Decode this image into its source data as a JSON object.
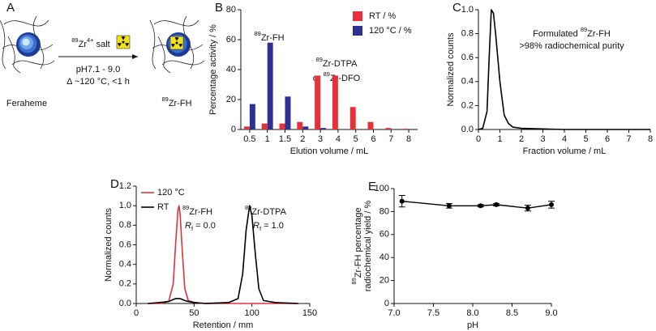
{
  "schematic": {
    "panel": "A",
    "start_label": "Feraheme",
    "reagent": {
      "sup": "89",
      "text": "Zr",
      "sup2": "4+",
      "rest": " salt"
    },
    "condition_ph": "pH7.1 - 9.0",
    "condition_temp": "Δ ~120 °C, <1 h",
    "product_label": {
      "sup": "89",
      "text": "Zr-FH"
    }
  },
  "chart_data": [
    {
      "type": "bar",
      "panel": "B",
      "categories": [
        "0.5",
        "1",
        "1.5",
        "2",
        "3",
        "4",
        "5",
        "6",
        "7",
        "8"
      ],
      "series": [
        {
          "name": "RT / %",
          "color": "#e8303a",
          "values": [
            2,
            4,
            4,
            5,
            36,
            36,
            15,
            5,
            1,
            0.5
          ]
        },
        {
          "name": "120 °C / %",
          "color": "#2e3192",
          "values": [
            17,
            58,
            22,
            2,
            1,
            0,
            0,
            0,
            0,
            0
          ]
        }
      ],
      "ylim": [
        0,
        80
      ],
      "yticks": [
        0,
        20,
        40,
        60,
        80
      ],
      "xlabel": "Elution volume / mL",
      "ylabel": "Percentage activity / %",
      "legend": "upper right",
      "annotations": [
        {
          "sup": "89",
          "text": "Zr-FH"
        },
        {
          "sup": "89",
          "text": "Zr-DTPA"
        },
        {
          "text": "or ",
          "sup": "89",
          "rest": "Zr-DFO"
        }
      ]
    },
    {
      "type": "line",
      "panel": "C",
      "x": [
        0,
        0.2,
        0.4,
        0.5,
        0.6,
        0.7,
        0.8,
        1,
        1.2,
        1.4,
        1.6,
        2,
        3,
        4,
        5,
        6,
        7,
        8
      ],
      "values": [
        0,
        0.01,
        0.15,
        0.6,
        1,
        0.97,
        0.8,
        0.4,
        0.12,
        0.05,
        0.02,
        0.01,
        0.005,
        0,
        0,
        0,
        0,
        0
      ],
      "color": "#000000",
      "xlim": [
        0,
        8
      ],
      "xticks": [
        0,
        1,
        2,
        3,
        4,
        5,
        6,
        7,
        8
      ],
      "ylim": [
        0,
        1
      ],
      "yticks": [
        {
          "value": 0,
          "label": "0.0"
        },
        0.2,
        0.4,
        0.6,
        0.8,
        {
          "value": 1,
          "label": "1.0"
        }
      ],
      "xlabel": "Fraction volume / mL",
      "ylabel": "Normalized counts",
      "annotations": [
        {
          "text": "Formulated ",
          "sup": "89",
          "rest": "Zr-FH"
        },
        {
          "text": ">98% radiochemical purity"
        }
      ]
    },
    {
      "type": "line",
      "panel": "D",
      "x": [
        10,
        20,
        28,
        32,
        34,
        36,
        37,
        38,
        40,
        42,
        45,
        50,
        60,
        80,
        88,
        92,
        95,
        98,
        100,
        103,
        106,
        110,
        120,
        140
      ],
      "series": [
        {
          "name": "120 °C",
          "color": "#e8303a",
          "values": [
            0,
            0,
            0.02,
            0.2,
            0.6,
            0.95,
            1,
            0.9,
            0.5,
            0.15,
            0.03,
            0.01,
            0,
            0,
            0,
            0,
            0,
            0,
            0,
            0,
            0,
            0,
            0,
            0
          ]
        },
        {
          "name": "RT",
          "color": "#000000",
          "values": [
            0,
            0.01,
            0.02,
            0.04,
            0.05,
            0.05,
            0.05,
            0.05,
            0.04,
            0.03,
            0.02,
            0.01,
            0,
            0.01,
            0.05,
            0.3,
            0.75,
            1,
            0.9,
            0.5,
            0.15,
            0.03,
            0.01,
            0
          ]
        }
      ],
      "xlim": [
        0,
        150
      ],
      "xticks": [
        0,
        50,
        100,
        150
      ],
      "ylim": [
        0,
        1.2
      ],
      "yticks": [
        {
          "value": 0,
          "label": "0.0"
        },
        0.2,
        0.4,
        0.6,
        0.8,
        {
          "value": 1,
          "label": "1.0"
        },
        1.2
      ],
      "xlabel": "Retention / mm",
      "ylabel": "Normalized counts",
      "legend": "upper left",
      "annotations": [
        {
          "sup": "89",
          "text": "Zr-FH"
        },
        {
          "italic": "R",
          "sub": "f",
          "text": " = 0.0"
        },
        {
          "sup": "89",
          "text": "Zr-DTPA"
        },
        {
          "italic": "R",
          "sub": "f",
          "text": " = 1.0"
        }
      ]
    },
    {
      "type": "scatter",
      "panel": "E",
      "x": [
        7.1,
        7.7,
        8.1,
        8.3,
        8.7,
        9.0
      ],
      "values": [
        89,
        85,
        85,
        86,
        83,
        86
      ],
      "errors": [
        5,
        2,
        1,
        1,
        2.5,
        3
      ],
      "color": "#000000",
      "line": true,
      "xlim": [
        7,
        9
      ],
      "xticks": [
        {
          "value": 7,
          "label": "7.0"
        },
        7.5,
        {
          "value": 8,
          "label": "8.0"
        },
        8.5,
        {
          "value": 9,
          "label": "9.0"
        }
      ],
      "ylim": [
        0,
        100
      ],
      "yticks": [
        0,
        20,
        40,
        60,
        80,
        100
      ],
      "xlabel": "pH",
      "ylabel": [
        {
          "sup": "89",
          "text": "Zr-FH percentage"
        },
        {
          "text": "radiochemical yield / %"
        }
      ]
    }
  ]
}
